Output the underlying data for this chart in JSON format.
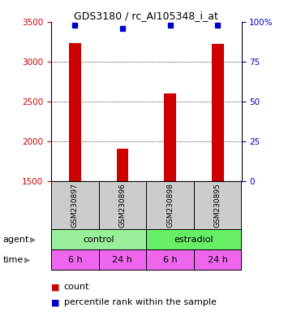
{
  "title": "GDS3180 / rc_AI105348_i_at",
  "samples": [
    "GSM230897",
    "GSM230896",
    "GSM230898",
    "GSM230895"
  ],
  "counts": [
    3230,
    1910,
    2600,
    3220
  ],
  "percentile_ranks": [
    98,
    96,
    98,
    98
  ],
  "ylim_left": [
    1500,
    3500
  ],
  "ylim_right": [
    0,
    100
  ],
  "yticks_left": [
    1500,
    2000,
    2500,
    3000,
    3500
  ],
  "yticks_right": [
    0,
    25,
    50,
    75,
    100
  ],
  "bar_color": "#cc0000",
  "dot_color": "#0000cc",
  "agent_labels": [
    "control",
    "estradiol"
  ],
  "agent_colors": [
    "#99ee99",
    "#66ee66"
  ],
  "time_labels": [
    "6 h",
    "24 h",
    "6 h",
    "24 h"
  ],
  "time_color": "#ee66ee",
  "sample_bg_color": "#cccccc",
  "legend_count_color": "#cc0000",
  "legend_pct_color": "#0000cc",
  "left_tick_color": "#cc0000",
  "right_tick_color": "#0000cc",
  "bar_width": 0.25
}
